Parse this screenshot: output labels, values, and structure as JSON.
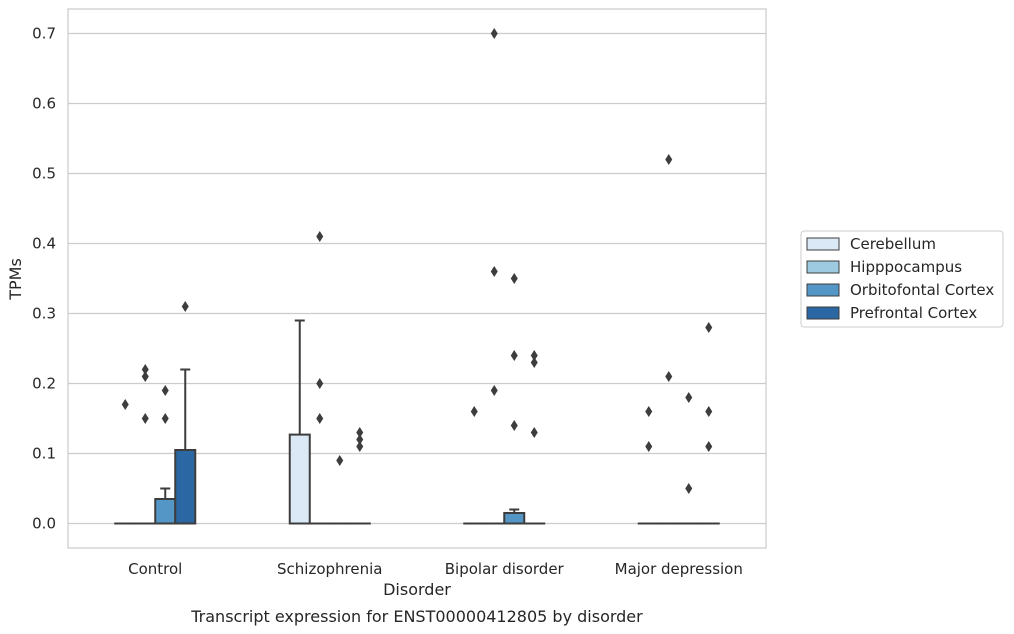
{
  "chart_data": {
    "type": "box",
    "title": "Transcript expression for ENST00000412805 by disorder",
    "xlabel": "Disorder",
    "ylabel": "TPMs",
    "ylim": [
      -0.035,
      0.735
    ],
    "yticks": [
      0.0,
      0.1,
      0.2,
      0.3,
      0.4,
      0.5,
      0.6,
      0.7
    ],
    "ytick_labels": [
      "0.0",
      "0.1",
      "0.2",
      "0.3",
      "0.4",
      "0.5",
      "0.6",
      "0.7"
    ],
    "grid": "horizontal",
    "legend_position": "right",
    "categories": [
      "Control",
      "Schizophrenia",
      "Bipolar disorder",
      "Major depression"
    ],
    "series": [
      {
        "name": "Cerebellum",
        "color": "#dbe9f6",
        "boxes": [
          {
            "whislo": 0,
            "q1": 0,
            "med": 0,
            "q3": 0,
            "whishi": 0,
            "fliers": [
              0.17
            ]
          },
          {
            "whislo": 0,
            "q1": 0,
            "med": 0,
            "q3": 0.127,
            "whishi": 0.29,
            "fliers": []
          },
          {
            "whislo": 0,
            "q1": 0,
            "med": 0,
            "q3": 0,
            "whishi": 0,
            "fliers": [
              0.16
            ]
          },
          {
            "whislo": 0,
            "q1": 0,
            "med": 0,
            "q3": 0,
            "whishi": 0,
            "fliers": [
              0.16,
              0.11
            ]
          }
        ]
      },
      {
        "name": "Hipppocampus",
        "color": "#9ecae1",
        "boxes": [
          {
            "whislo": 0,
            "q1": 0,
            "med": 0,
            "q3": 0,
            "whishi": 0,
            "fliers": [
              0.22,
              0.21,
              0.15
            ]
          },
          {
            "whislo": 0,
            "q1": 0,
            "med": 0,
            "q3": 0,
            "whishi": 0,
            "fliers": [
              0.41,
              0.2,
              0.15
            ]
          },
          {
            "whislo": 0,
            "q1": 0,
            "med": 0,
            "q3": 0,
            "whishi": 0,
            "fliers": [
              0.7,
              0.36,
              0.19
            ]
          },
          {
            "whislo": 0,
            "q1": 0,
            "med": 0,
            "q3": 0,
            "whishi": 0,
            "fliers": [
              0.52,
              0.21
            ]
          }
        ]
      },
      {
        "name": "Orbitofontal Cortex",
        "color": "#5496c6",
        "boxes": [
          {
            "whislo": 0,
            "q1": 0,
            "med": 0,
            "q3": 0.035,
            "whishi": 0.05,
            "fliers": [
              0.19,
              0.15
            ]
          },
          {
            "whislo": 0,
            "q1": 0,
            "med": 0,
            "q3": 0,
            "whishi": 0,
            "fliers": [
              0.09
            ]
          },
          {
            "whislo": 0,
            "q1": 0,
            "med": 0,
            "q3": 0.015,
            "whishi": 0.02,
            "fliers": [
              0.35,
              0.24,
              0.14
            ]
          },
          {
            "whislo": 0,
            "q1": 0,
            "med": 0,
            "q3": 0,
            "whishi": 0,
            "fliers": [
              0.18,
              0.05
            ]
          }
        ]
      },
      {
        "name": "Prefrontal Cortex",
        "color": "#2a67a3",
        "boxes": [
          {
            "whislo": 0,
            "q1": 0,
            "med": 0,
            "q3": 0.105,
            "whishi": 0.22,
            "fliers": [
              0.31
            ]
          },
          {
            "whislo": 0,
            "q1": 0,
            "med": 0,
            "q3": 0,
            "whishi": 0,
            "fliers": [
              0.13,
              0.12,
              0.11
            ]
          },
          {
            "whislo": 0,
            "q1": 0,
            "med": 0,
            "q3": 0,
            "whishi": 0,
            "fliers": [
              0.24,
              0.23,
              0.13
            ]
          },
          {
            "whislo": 0,
            "q1": 0,
            "med": 0,
            "q3": 0,
            "whishi": 0,
            "fliers": [
              0.28,
              0.16,
              0.11
            ]
          }
        ]
      }
    ]
  }
}
